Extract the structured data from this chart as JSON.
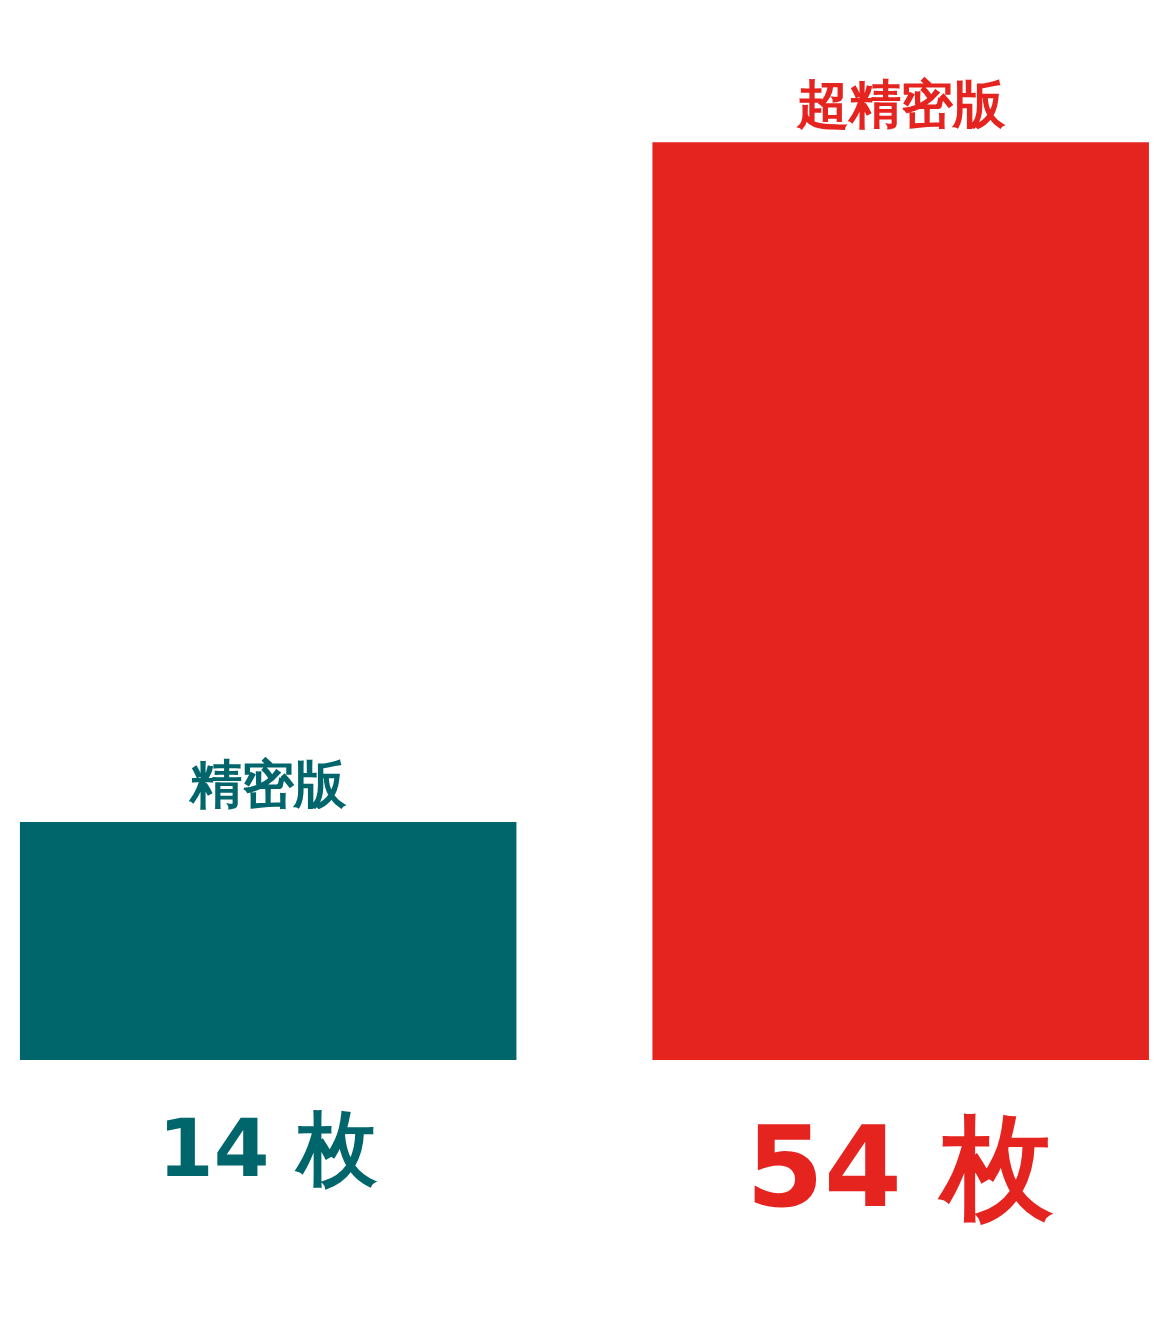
{
  "chart_data": {
    "type": "bar",
    "categories": [
      "精密版",
      "超精密版"
    ],
    "values": [
      14,
      54
    ],
    "colors": [
      "#00666b",
      "#e5231f"
    ],
    "value_labels": [
      "14 枚",
      "54 枚"
    ],
    "tick_labels": false
  }
}
